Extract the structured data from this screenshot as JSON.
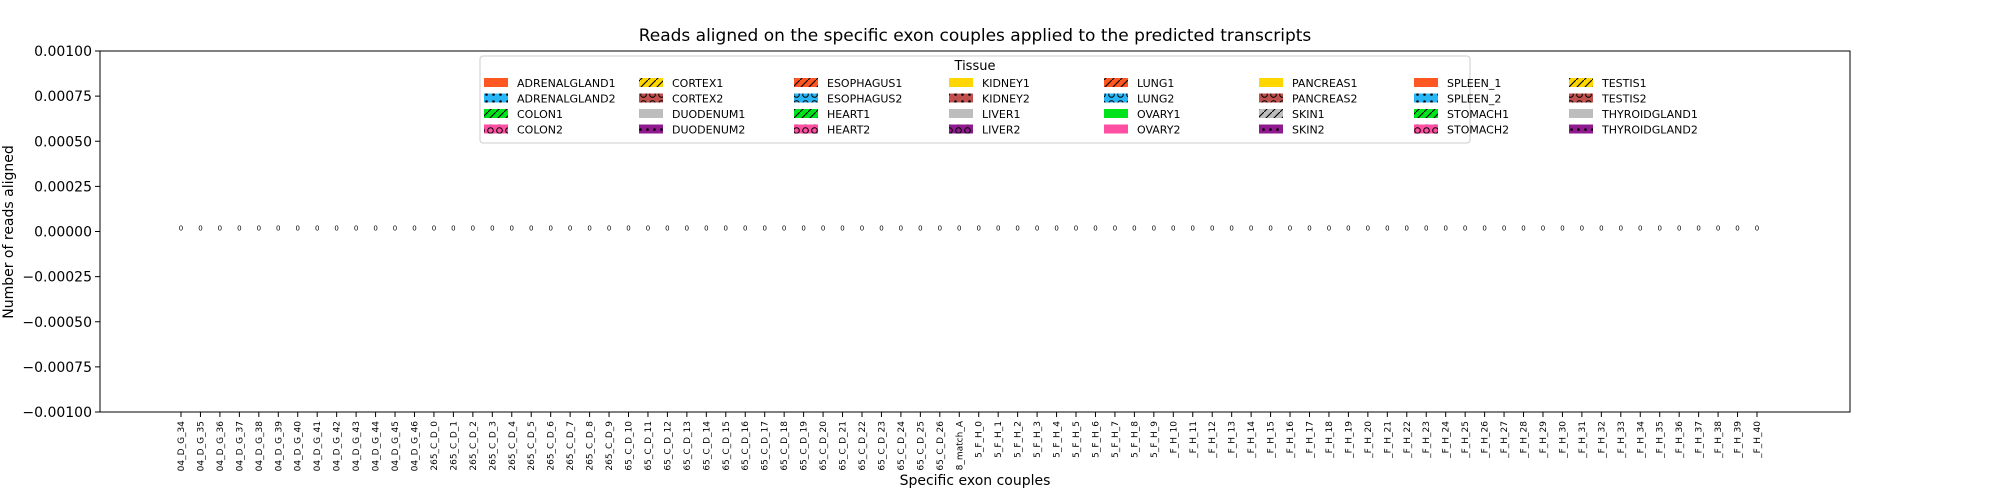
{
  "chart_data": {
    "type": "bar",
    "title": "Reads aligned on the specific exon couples applied to the predicted transcripts",
    "xlabel": "Specific exon couples",
    "ylabel": "Number of reads aligned",
    "ylim": [
      -0.001,
      0.001
    ],
    "yticks": [
      "0.00100",
      "0.00075",
      "0.00050",
      "0.00025",
      "0.00000",
      "−0.00025",
      "−0.00050",
      "−0.00075",
      "−0.00100"
    ],
    "ytick_values": [
      0.001,
      0.00075,
      0.0005,
      0.00025,
      0,
      -0.00025,
      -0.0005,
      -0.00075,
      -0.001
    ],
    "grid": false,
    "legend_position": "top-center",
    "legend_title": "Tissue",
    "categories": [
      "04_D_G_34",
      "04_D_G_35",
      "04_D_G_36",
      "04_D_G_37",
      "04_D_G_38",
      "04_D_G_39",
      "04_D_G_40",
      "04_D_G_41",
      "04_D_G_42",
      "04_D_G_43",
      "04_D_G_44",
      "04_D_G_45",
      "04_D_G_46",
      "265_C_D_0",
      "265_C_D_1",
      "265_C_D_2",
      "265_C_D_3",
      "265_C_D_4",
      "265_C_D_5",
      "265_C_D_6",
      "265_C_D_7",
      "265_C_D_8",
      "265_C_D_9",
      "65_C_D_10",
      "65_C_D_11",
      "65_C_D_12",
      "65_C_D_13",
      "65_C_D_14",
      "65_C_D_15",
      "65_C_D_16",
      "65_C_D_17",
      "65_C_D_18",
      "65_C_D_19",
      "65_C_D_20",
      "65_C_D_21",
      "65_C_D_22",
      "65_C_D_23",
      "65_C_D_24",
      "65_C_D_25",
      "65_C_D_26",
      "8_match_A",
      "5_F_H_0",
      "5_F_H_1",
      "5_F_H_2",
      "5_F_H_3",
      "5_F_H_4",
      "5_F_H_5",
      "5_F_H_6",
      "5_F_H_7",
      "5_F_H_8",
      "5_F_H_9",
      "_F_H_10",
      "_F_H_11",
      "_F_H_12",
      "_F_H_13",
      "_F_H_14",
      "_F_H_15",
      "_F_H_16",
      "_F_H_17",
      "_F_H_18",
      "_F_H_19",
      "_F_H_20",
      "_F_H_21",
      "_F_H_22",
      "_F_H_23",
      "_F_H_24",
      "_F_H_25",
      "_F_H_26",
      "_F_H_27",
      "_F_H_28",
      "_F_H_29",
      "_F_H_30",
      "_F_H_31",
      "_F_H_32",
      "_F_H_33",
      "_F_H_34",
      "_F_H_35",
      "_F_H_36",
      "_F_H_37",
      "_F_H_38",
      "_F_H_39",
      "_F_H_40"
    ],
    "values": [
      0,
      0,
      0,
      0,
      0,
      0,
      0,
      0,
      0,
      0,
      0,
      0,
      0,
      0,
      0,
      0,
      0,
      0,
      0,
      0,
      0,
      0,
      0,
      0,
      0,
      0,
      0,
      0,
      0,
      0,
      0,
      0,
      0,
      0,
      0,
      0,
      0,
      0,
      0,
      0,
      0,
      0,
      0,
      0,
      0,
      0,
      0,
      0,
      0,
      0,
      0,
      0,
      0,
      0,
      0,
      0,
      0,
      0,
      0,
      0,
      0,
      0,
      0,
      0,
      0,
      0,
      0,
      0,
      0,
      0,
      0,
      0,
      0,
      0,
      0,
      0,
      0,
      0,
      0,
      0,
      0,
      0
    ],
    "value_labels": [
      "0",
      "0",
      "0",
      "0",
      "0",
      "0",
      "0",
      "0",
      "0",
      "0",
      "0",
      "0",
      "0",
      "0",
      "0",
      "0",
      "0",
      "0",
      "0",
      "0",
      "0",
      "0",
      "0",
      "0",
      "0",
      "0",
      "0",
      "0",
      "0",
      "0",
      "0",
      "0",
      "0",
      "0",
      "0",
      "0",
      "0",
      "0",
      "0",
      "0",
      "0",
      "0",
      "0",
      "0",
      "0",
      "0",
      "0",
      "0",
      "0",
      "0",
      "0",
      "0",
      "0",
      "0",
      "0",
      "0",
      "0",
      "0",
      "0",
      "0",
      "0",
      "0",
      "0",
      "0",
      "0",
      "0",
      "0",
      "0",
      "0",
      "0",
      "0",
      "0",
      "0",
      "0",
      "0",
      "0",
      "0",
      "0",
      "0",
      "0",
      "0",
      "0"
    ],
    "legend": [
      {
        "label": "ADRENALGLAND1",
        "color": "#ff5722",
        "hatch": "none"
      },
      {
        "label": "ADRENALGLAND2",
        "color": "#29b6f6",
        "hatch": "dots"
      },
      {
        "label": "COLON1",
        "color": "#00e21c",
        "hatch": "slash"
      },
      {
        "label": "COLON2",
        "color": "#ff4fa3",
        "hatch": "circles"
      },
      {
        "label": "CORTEX1",
        "color": "#ffd600",
        "hatch": "slash"
      },
      {
        "label": "CORTEX2",
        "color": "#c0504d",
        "hatch": "circles"
      },
      {
        "label": "DUODENUM1",
        "color": "#bdbdbd",
        "hatch": "none"
      },
      {
        "label": "DUODENUM2",
        "color": "#8e1a8e",
        "hatch": "dots"
      },
      {
        "label": "ESOPHAGUS1",
        "color": "#ff5722",
        "hatch": "slash"
      },
      {
        "label": "ESOPHAGUS2",
        "color": "#29b6f6",
        "hatch": "circles"
      },
      {
        "label": "HEART1",
        "color": "#00e21c",
        "hatch": "slash"
      },
      {
        "label": "HEART2",
        "color": "#ff4fa3",
        "hatch": "circles"
      },
      {
        "label": "KIDNEY1",
        "color": "#ffd600",
        "hatch": "none"
      },
      {
        "label": "KIDNEY2",
        "color": "#c0504d",
        "hatch": "dots"
      },
      {
        "label": "LIVER1",
        "color": "#bdbdbd",
        "hatch": "none"
      },
      {
        "label": "LIVER2",
        "color": "#8e1a8e",
        "hatch": "circles"
      },
      {
        "label": "LUNG1",
        "color": "#ff5722",
        "hatch": "slash"
      },
      {
        "label": "LUNG2",
        "color": "#29b6f6",
        "hatch": "circles"
      },
      {
        "label": "OVARY1",
        "color": "#00e21c",
        "hatch": "none"
      },
      {
        "label": "OVARY2",
        "color": "#ff4fa3",
        "hatch": "none"
      },
      {
        "label": "PANCREAS1",
        "color": "#ffd600",
        "hatch": "none"
      },
      {
        "label": "PANCREAS2",
        "color": "#c0504d",
        "hatch": "circles"
      },
      {
        "label": "SKIN1",
        "color": "#bdbdbd",
        "hatch": "slash"
      },
      {
        "label": "SKIN2",
        "color": "#8e1a8e",
        "hatch": "dots"
      },
      {
        "label": "SPLEEN_1",
        "color": "#ff5722",
        "hatch": "none"
      },
      {
        "label": "SPLEEN_2",
        "color": "#29b6f6",
        "hatch": "dots"
      },
      {
        "label": "STOMACH1",
        "color": "#00e21c",
        "hatch": "slash"
      },
      {
        "label": "STOMACH2",
        "color": "#ff4fa3",
        "hatch": "circles"
      },
      {
        "label": "TESTIS1",
        "color": "#ffd600",
        "hatch": "slash"
      },
      {
        "label": "TESTIS2",
        "color": "#c0504d",
        "hatch": "circles"
      },
      {
        "label": "THYROIDGLAND1",
        "color": "#bdbdbd",
        "hatch": "none"
      },
      {
        "label": "THYROIDGLAND2",
        "color": "#8e1a8e",
        "hatch": "dots"
      }
    ]
  }
}
